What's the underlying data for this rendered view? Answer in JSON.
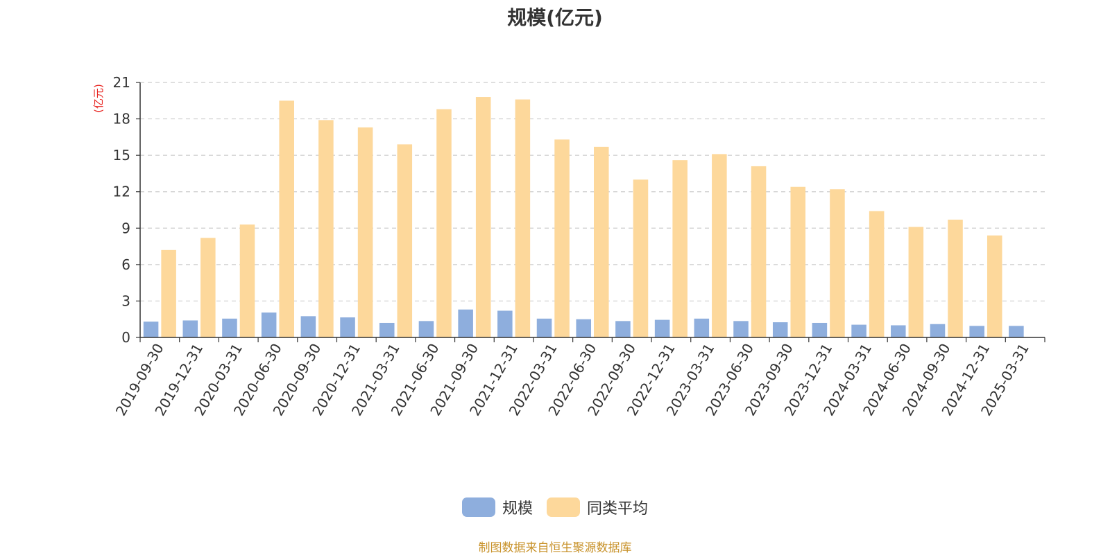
{
  "chart_data": {
    "type": "bar",
    "title": "规模(亿元)",
    "ylabel": "(亿元)",
    "xlabel": "",
    "ylim": [
      0,
      21
    ],
    "yticks": [
      0,
      3,
      6,
      9,
      12,
      15,
      18,
      21
    ],
    "grid": true,
    "legend_position": "bottom",
    "categories": [
      "2019-09-30",
      "2019-12-31",
      "2020-03-31",
      "2020-06-30",
      "2020-09-30",
      "2020-12-31",
      "2021-03-31",
      "2021-06-30",
      "2021-09-30",
      "2021-12-31",
      "2022-03-31",
      "2022-06-30",
      "2022-09-30",
      "2022-12-31",
      "2023-03-31",
      "2023-06-30",
      "2023-09-30",
      "2023-12-31",
      "2024-03-31",
      "2024-06-30",
      "2024-09-30",
      "2024-12-31",
      "2025-03-31"
    ],
    "series": [
      {
        "name": "规模",
        "color": "#8eaedd",
        "values": [
          1.3,
          1.4,
          1.55,
          2.05,
          1.75,
          1.65,
          1.2,
          1.35,
          2.3,
          2.2,
          1.55,
          1.5,
          1.35,
          1.45,
          1.55,
          1.35,
          1.25,
          1.2,
          1.05,
          1.0,
          1.1,
          0.95,
          0.95
        ]
      },
      {
        "name": "同类平均",
        "color": "#fdd89b",
        "values": [
          7.2,
          8.2,
          9.3,
          19.5,
          17.9,
          17.3,
          15.9,
          18.8,
          19.8,
          19.6,
          16.3,
          15.7,
          13.0,
          14.6,
          15.1,
          14.1,
          12.4,
          12.2,
          10.4,
          9.1,
          9.7,
          8.4,
          null
        ]
      }
    ]
  },
  "footer": {
    "source": "制图数据来自恒生聚源数据库"
  }
}
